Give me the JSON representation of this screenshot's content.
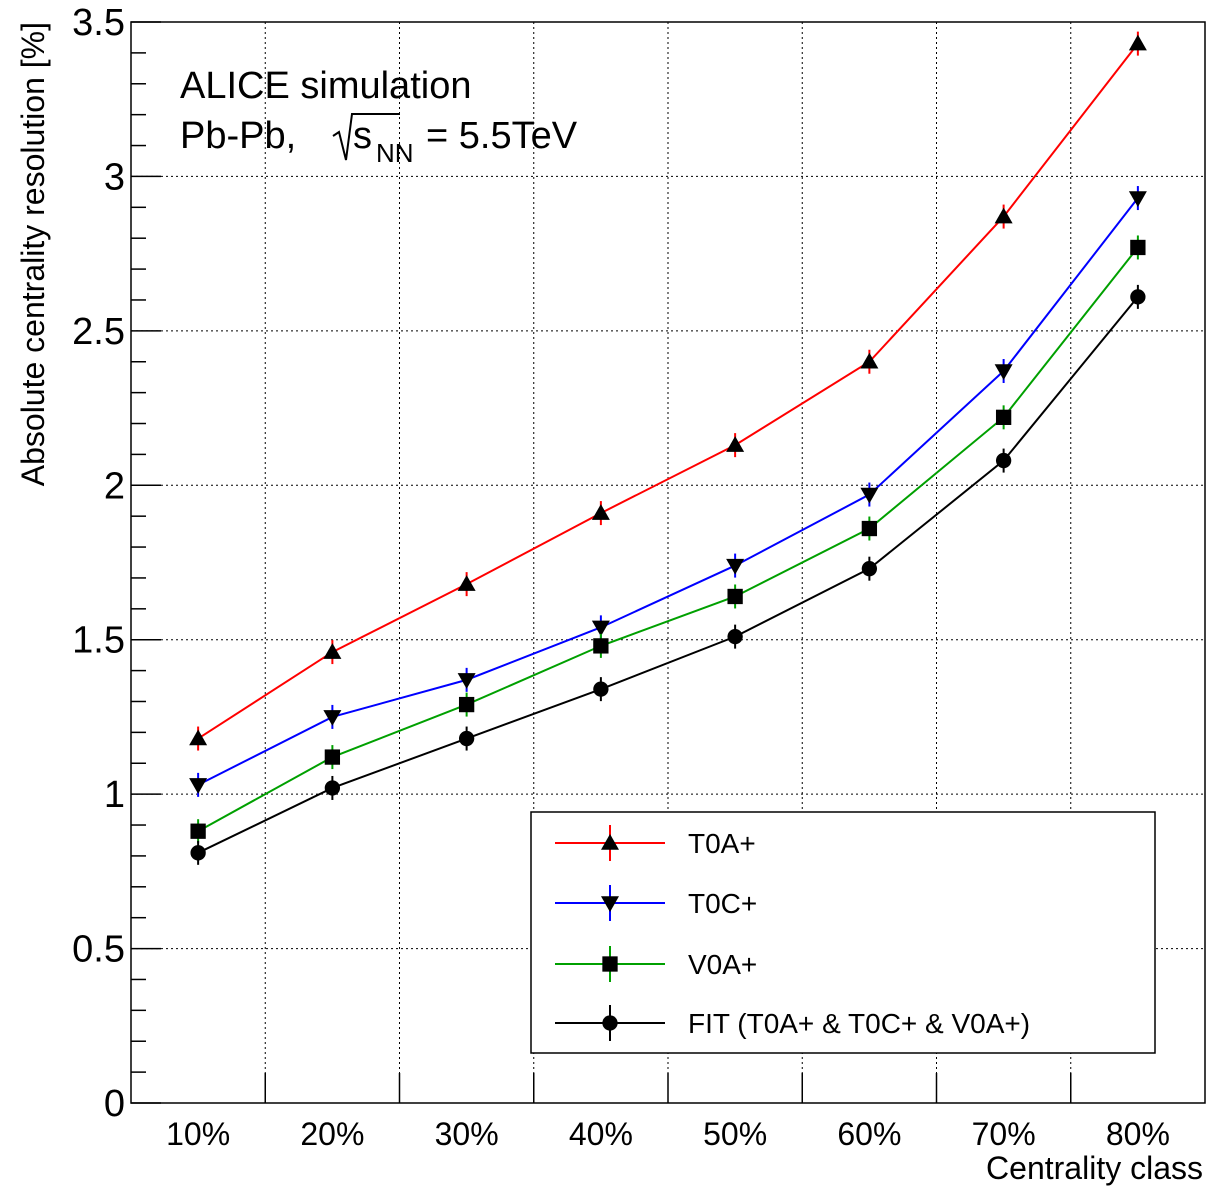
{
  "chart_data": {
    "type": "line",
    "annotation": {
      "line1": "ALICE simulation",
      "line2_prefix": "Pb-Pb,",
      "line2_s": "s",
      "line2_sub": "NN",
      "line2_suffix": "= 5.5TeV"
    },
    "xlabel": "Centrality class",
    "ylabel": "Absolute centrality resolution [%]",
    "ylim": [
      0,
      3.5
    ],
    "yticks": [
      "0",
      "0.5",
      "1",
      "1.5",
      "2",
      "2.5",
      "3",
      "3.5"
    ],
    "categories": [
      "10%",
      "20%",
      "30%",
      "40%",
      "50%",
      "60%",
      "70%",
      "80%"
    ],
    "grid": true,
    "legend_position": "bottom-right",
    "series": [
      {
        "name": "T0A+",
        "color": "#ff0000",
        "marker": "triangle-up",
        "values": [
          1.18,
          1.46,
          1.68,
          1.91,
          2.13,
          2.4,
          2.87,
          3.43
        ]
      },
      {
        "name": "T0C+",
        "color": "#0000ff",
        "marker": "triangle-down",
        "values": [
          1.03,
          1.25,
          1.37,
          1.54,
          1.74,
          1.97,
          2.37,
          2.93
        ]
      },
      {
        "name": "V0A+",
        "color": "#00a000",
        "marker": "square",
        "values": [
          0.88,
          1.12,
          1.29,
          1.48,
          1.64,
          1.86,
          2.22,
          2.77
        ]
      },
      {
        "name": "FIT (T0A+ & T0C+ & V0A+)",
        "color": "#000000",
        "marker": "circle",
        "values": [
          0.81,
          1.02,
          1.18,
          1.34,
          1.51,
          1.73,
          2.08,
          2.61
        ]
      }
    ]
  }
}
